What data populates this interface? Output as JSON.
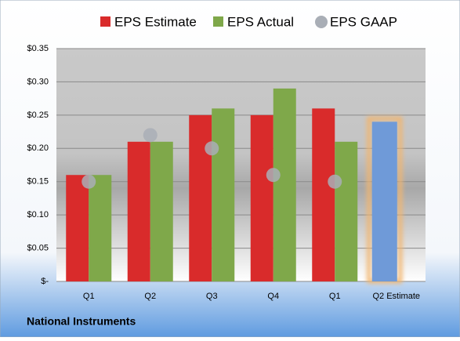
{
  "chart_data": {
    "type": "bar",
    "categories": [
      "Q1",
      "Q2",
      "Q3",
      "Q4",
      "Q1",
      "Q2 Estimate"
    ],
    "series": [
      {
        "name": "EPS Estimate",
        "color": "#d92b2b",
        "values": [
          0.16,
          0.21,
          0.25,
          0.25,
          0.26,
          0.24
        ]
      },
      {
        "name": "EPS Actual",
        "color": "#7fa84a",
        "values": [
          0.16,
          0.21,
          0.26,
          0.29,
          0.21,
          null
        ]
      },
      {
        "name": "EPS GAAP",
        "color": "#a9aeb6",
        "values": [
          0.15,
          0.22,
          0.2,
          0.16,
          0.15,
          null
        ],
        "marker": "circle"
      }
    ],
    "highlight": {
      "index": 5,
      "color": "#6f9ad8",
      "glow": "#f2b56e"
    },
    "ylim": [
      0,
      0.35
    ],
    "yticks": [
      {
        "value": 0,
        "label": "$-"
      },
      {
        "value": 0.05,
        "label": "$0.05"
      },
      {
        "value": 0.1,
        "label": "$0.10"
      },
      {
        "value": 0.15,
        "label": "$0.15"
      },
      {
        "value": 0.2,
        "label": "$0.20"
      },
      {
        "value": 0.25,
        "label": "$0.25"
      },
      {
        "value": 0.3,
        "label": "$0.30"
      },
      {
        "value": 0.35,
        "label": "$0.35"
      }
    ],
    "grid": true,
    "legend": "top",
    "footer": "National Instruments"
  }
}
